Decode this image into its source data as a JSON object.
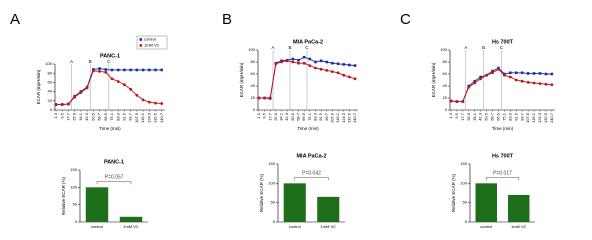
{
  "panel_labels": [
    "A",
    "B",
    "C"
  ],
  "chart_data": [
    {
      "type": "line",
      "title": "PANC-1",
      "xlabel": "Time (min)",
      "ylabel": "ECAR (mpH/min)",
      "x": [
        1.3,
        9.5,
        17.7,
        25.9,
        34.1,
        42.3,
        50.5,
        58.7,
        66.9,
        75.1,
        83.3,
        91.5,
        99.7,
        107.9,
        116.1,
        124.3,
        132.5,
        140.7
      ],
      "xlim": [
        0,
        145
      ],
      "xticks": [
        1.3,
        9.5,
        17.7,
        25.9,
        34.1,
        42.3,
        50.5,
        58.7,
        66.9,
        75.1,
        83.3,
        91.5,
        99.7,
        107.9,
        116.1,
        124.3,
        132.5,
        140.7
      ],
      "ylim": [
        0,
        100
      ],
      "yticks": [
        0,
        20,
        40,
        60,
        80,
        100
      ],
      "injections": [
        {
          "label": "A",
          "x": 21.8
        },
        {
          "label": "B",
          "x": 46.4
        },
        {
          "label": "C",
          "x": 71.0
        }
      ],
      "legend": "upper-right",
      "series": [
        {
          "name": "control",
          "color": "#1a2fa0",
          "marker": "square",
          "values": [
            12,
            12,
            13,
            30,
            40,
            50,
            88,
            90,
            88,
            87,
            87,
            87,
            87,
            87,
            87,
            87,
            87,
            87
          ]
        },
        {
          "name": "1mM VC",
          "color": "#c0141c",
          "marker": "circle",
          "values": [
            12,
            12,
            13,
            28,
            38,
            48,
            85,
            84,
            82,
            68,
            62,
            55,
            45,
            32,
            22,
            17,
            15,
            14
          ]
        }
      ]
    },
    {
      "type": "bar",
      "title": "PANC-1",
      "ylabel": "Relative ECAR (%)",
      "categories": [
        "control",
        "1mM VC"
      ],
      "values": [
        100,
        15
      ],
      "color": "#1e6e1a",
      "ylim": [
        0,
        150
      ],
      "yticks": [
        0,
        50,
        100,
        150
      ],
      "annotation": "P=0.057"
    },
    {
      "type": "line",
      "title": "MIA PaCa-2",
      "xlabel": "Time (min)",
      "ylabel": "ECAR (mpH/min)",
      "x": [
        1.3,
        9.5,
        17.7,
        25.9,
        34.1,
        42.3,
        50.5,
        58.7,
        66.9,
        75.1,
        83.3,
        91.5,
        99.7,
        107.9,
        116.1,
        124.3,
        132.5,
        140.7
      ],
      "xlim": [
        0,
        145
      ],
      "xticks": [
        1.3,
        9.5,
        17.7,
        25.9,
        34.1,
        42.3,
        50.5,
        58.7,
        66.9,
        75.1,
        83.3,
        91.5,
        99.7,
        107.9,
        116.1,
        124.3,
        132.5,
        140.7
      ],
      "ylim": [
        0,
        100
      ],
      "yticks": [
        0,
        20,
        40,
        60,
        80,
        100
      ],
      "injections": [
        {
          "label": "A",
          "x": 21.8
        },
        {
          "label": "B",
          "x": 46.4
        },
        {
          "label": "C",
          "x": 71.0
        }
      ],
      "series": [
        {
          "color": "#1a2fa0",
          "marker": "square",
          "values": [
            20,
            20,
            20,
            78,
            82,
            83,
            85,
            83,
            88,
            85,
            80,
            82,
            80,
            78,
            77,
            76,
            75,
            74
          ]
        },
        {
          "color": "#c0141c",
          "marker": "circle",
          "values": [
            20,
            20,
            19,
            77,
            80,
            82,
            80,
            78,
            78,
            74,
            70,
            68,
            66,
            64,
            62,
            58,
            55,
            52
          ]
        }
      ]
    },
    {
      "type": "bar",
      "title": "MIA PaCa-2",
      "ylabel": "Relative ECAR (%)",
      "categories": [
        "control",
        "1mM VC"
      ],
      "values": [
        100,
        65
      ],
      "color": "#1e6e1a",
      "ylim": [
        0,
        150
      ],
      "yticks": [
        0,
        50,
        100,
        150
      ],
      "annotation": "P=0.042"
    },
    {
      "type": "line",
      "title": "Hs 700T",
      "xlabel": "Time (min)",
      "ylabel": "ECAR (mpH/min)",
      "x": [
        1.3,
        9.5,
        17.7,
        25.9,
        34.1,
        42.3,
        50.5,
        58.7,
        66.9,
        75.1,
        83.3,
        91.5,
        99.7,
        107.9,
        116.1,
        124.3,
        132.5,
        140.7
      ],
      "xlim": [
        0,
        145
      ],
      "xticks": [
        1.3,
        9.5,
        17.7,
        25.9,
        34.1,
        42.3,
        50.5,
        58.7,
        66.9,
        75.1,
        83.3,
        91.5,
        99.7,
        107.9,
        116.1,
        124.3,
        132.5,
        140.7
      ],
      "ylim": [
        0,
        100
      ],
      "yticks": [
        0,
        20,
        40,
        60,
        80,
        100
      ],
      "injections": [
        {
          "label": "A",
          "x": 21.8
        },
        {
          "label": "B",
          "x": 46.4
        },
        {
          "label": "C",
          "x": 71.0
        }
      ],
      "series": [
        {
          "color": "#1a2fa0",
          "marker": "square",
          "values": [
            15,
            14,
            14,
            40,
            48,
            55,
            58,
            65,
            70,
            60,
            62,
            62,
            62,
            61,
            61,
            61,
            60,
            60
          ]
        },
        {
          "color": "#c0141c",
          "marker": "circle",
          "values": [
            15,
            14,
            14,
            38,
            45,
            52,
            58,
            62,
            68,
            58,
            55,
            50,
            48,
            46,
            45,
            44,
            43,
            42
          ]
        }
      ]
    },
    {
      "type": "bar",
      "title": "Hs 700T",
      "ylabel": "Relative ECAR (%)",
      "categories": [
        "control",
        "1mM VC"
      ],
      "values": [
        100,
        70
      ],
      "color": "#1e6e1a",
      "ylim": [
        0,
        150
      ],
      "yticks": [
        0,
        50,
        100,
        150
      ],
      "annotation": "P=0.017"
    }
  ]
}
